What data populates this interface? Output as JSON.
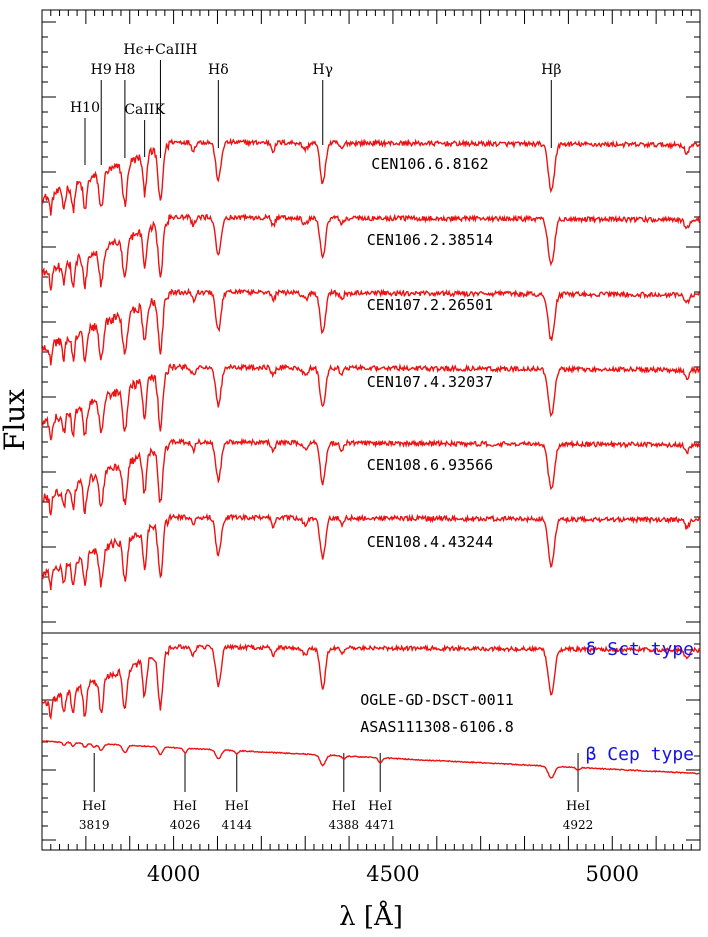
{
  "chart_data": {
    "type": "line",
    "xlabel": "λ [Å]",
    "ylabel": "Flux",
    "xlim": [
      3700,
      5200
    ],
    "x_ticks": [
      {
        "value": 4000,
        "label": "4000"
      },
      {
        "value": 4500,
        "label": "4500"
      },
      {
        "value": 5000,
        "label": "5000"
      }
    ],
    "line_color": "#ee1111",
    "note_color": "#1414e0",
    "top_lines": [
      {
        "label": "H10",
        "x": 3798
      },
      {
        "label": "H9",
        "x": 3835
      },
      {
        "label": "H8",
        "x": 3889
      },
      {
        "label": "CaIIK",
        "x": 3934
      },
      {
        "label": "Hϵ+CaIIH",
        "x": 3970
      },
      {
        "label": "Hδ",
        "x": 4102
      },
      {
        "label": "Hγ",
        "x": 4340
      },
      {
        "label": "Hβ",
        "x": 4861
      }
    ],
    "bottom_lines": [
      {
        "label": "HeI",
        "wavelength": "3819",
        "x": 3819
      },
      {
        "label": "HeI",
        "wavelength": "4026",
        "x": 4026
      },
      {
        "label": "HeI",
        "wavelength": "4144",
        "x": 4144
      },
      {
        "label": "HeI",
        "wavelength": "4388",
        "x": 4388
      },
      {
        "label": "HeI",
        "wavelength": "4471",
        "x": 4471
      },
      {
        "label": "HeI",
        "wavelength": "4922",
        "x": 4922
      }
    ],
    "upper_series": [
      {
        "name": "CEN106.6.8162",
        "type": "delta-scuti"
      },
      {
        "name": "CEN106.2.38514",
        "type": "delta-scuti"
      },
      {
        "name": "CEN107.2.26501",
        "type": "delta-scuti"
      },
      {
        "name": "CEN107.4.32037",
        "type": "delta-scuti"
      },
      {
        "name": "CEN108.6.93566",
        "type": "delta-scuti"
      },
      {
        "name": "CEN108.4.43244",
        "type": "delta-scuti"
      }
    ],
    "lower_series": [
      {
        "name": "OGLE-GD-DSCT-0011",
        "type": "delta-scuti"
      },
      {
        "name": "ASAS111308-6106.8",
        "type": "beta-cep"
      }
    ],
    "type_notes": [
      "δ Sct type",
      "β Cep type"
    ]
  }
}
